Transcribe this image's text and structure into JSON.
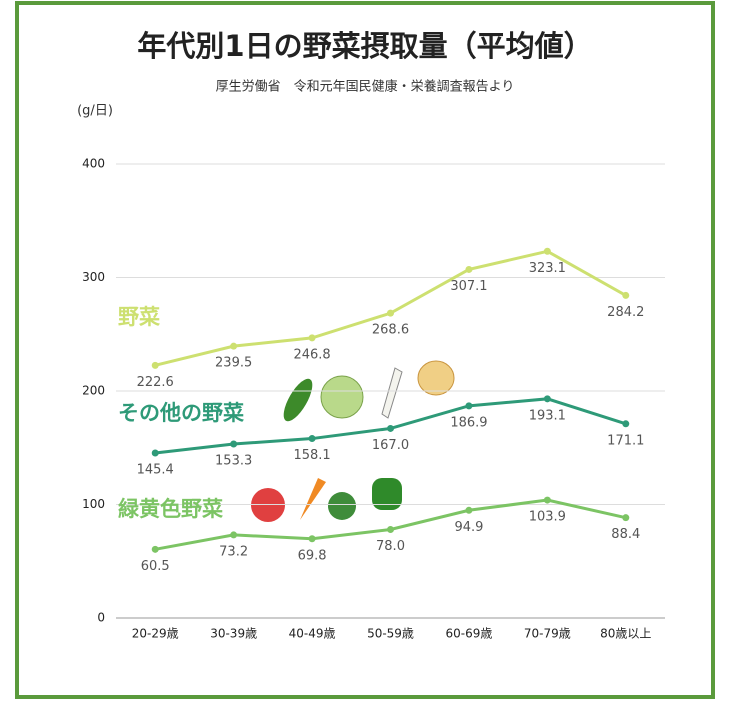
{
  "chart_data": {
    "type": "line",
    "title": "年代別1日の野菜摂取量（平均値）",
    "subtitle": "厚生労働省　令和元年国民健康・栄養調査報告より",
    "y_label": "(g/日)",
    "categories": [
      "20-29歳",
      "30-39歳",
      "40-49歳",
      "50-59歳",
      "60-69歳",
      "70-79歳",
      "80歳以上"
    ],
    "series": [
      {
        "name": "野菜",
        "color": "#cde070",
        "values": [
          222.6,
          239.5,
          246.8,
          268.6,
          307.1,
          323.1,
          284.2
        ],
        "value_labels": [
          "222.6",
          "239.5",
          "246.8",
          "268.6",
          "307.1",
          "323.1",
          "284.2"
        ]
      },
      {
        "name": "その他の野菜",
        "color": "#2e9a78",
        "values": [
          145.4,
          153.3,
          158.1,
          167,
          186.9,
          193.1,
          171.1
        ],
        "value_labels": [
          "145.4",
          "153.3",
          "158.1",
          "167.0",
          "186.9",
          "193.1",
          "171.1"
        ]
      },
      {
        "name": "緑黄色野菜",
        "color": "#7cc464",
        "values": [
          60.5,
          73.2,
          69.8,
          78,
          94.9,
          103.9,
          88.4
        ],
        "value_labels": [
          "60.5",
          "73.2",
          "69.8",
          "78.0",
          "94.9",
          "103.9",
          "88.4"
        ]
      }
    ],
    "ylim": [
      0,
      400
    ],
    "yticks": [
      0,
      100,
      200,
      300,
      400
    ],
    "grid": true
  }
}
